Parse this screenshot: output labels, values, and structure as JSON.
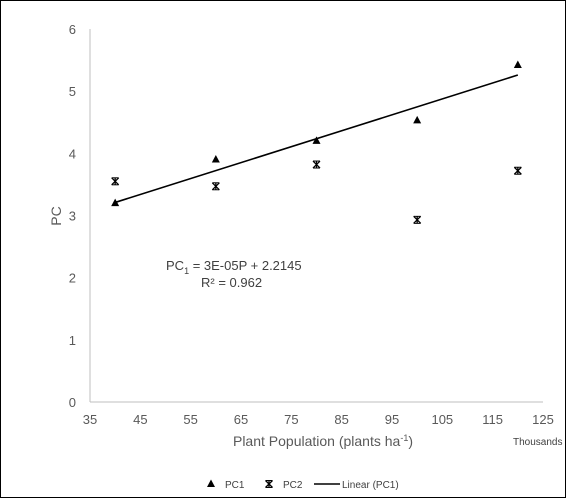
{
  "chart_data": {
    "type": "scatter",
    "xlabel": "Plant Population (plants ha",
    "xlabel_sup": "-1",
    "xlabel_end": ")",
    "x_display_unit": "Thousands",
    "ylabel": "PC",
    "xlim": [
      35,
      125
    ],
    "ylim": [
      0,
      6
    ],
    "x_ticks": [
      "35",
      "45",
      "55",
      "65",
      "75",
      "85",
      "95",
      "105",
      "115",
      "125"
    ],
    "y_ticks": [
      "0",
      "1",
      "2",
      "3",
      "4",
      "5",
      "6"
    ],
    "grid": false,
    "legend_position": "bottom",
    "series": [
      {
        "name": "PC1",
        "marker": "triangle",
        "color": "#000000",
        "x": [
          40000,
          60000,
          80000,
          100000,
          120000
        ],
        "y": [
          3.2,
          3.9,
          4.2,
          4.53,
          5.42
        ]
      },
      {
        "name": "PC2",
        "marker": "star",
        "color": "#000000",
        "x": [
          40000,
          60000,
          80000,
          100000,
          120000
        ],
        "y": [
          3.55,
          3.47,
          3.82,
          2.93,
          3.72
        ]
      }
    ],
    "trendline": {
      "name": "Linear (PC1)",
      "color": "#000000",
      "slope": 3e-05,
      "intercept": 2.2145,
      "x_range": [
        40000,
        120000
      ],
      "y_range": [
        3.21,
        5.26
      ]
    },
    "annotations": {
      "equation_prefix": "PC",
      "equation_sub": "1",
      "equation_rest": " = 3E-05P + 2.2145",
      "r_squared": "R² = 0.962"
    }
  }
}
